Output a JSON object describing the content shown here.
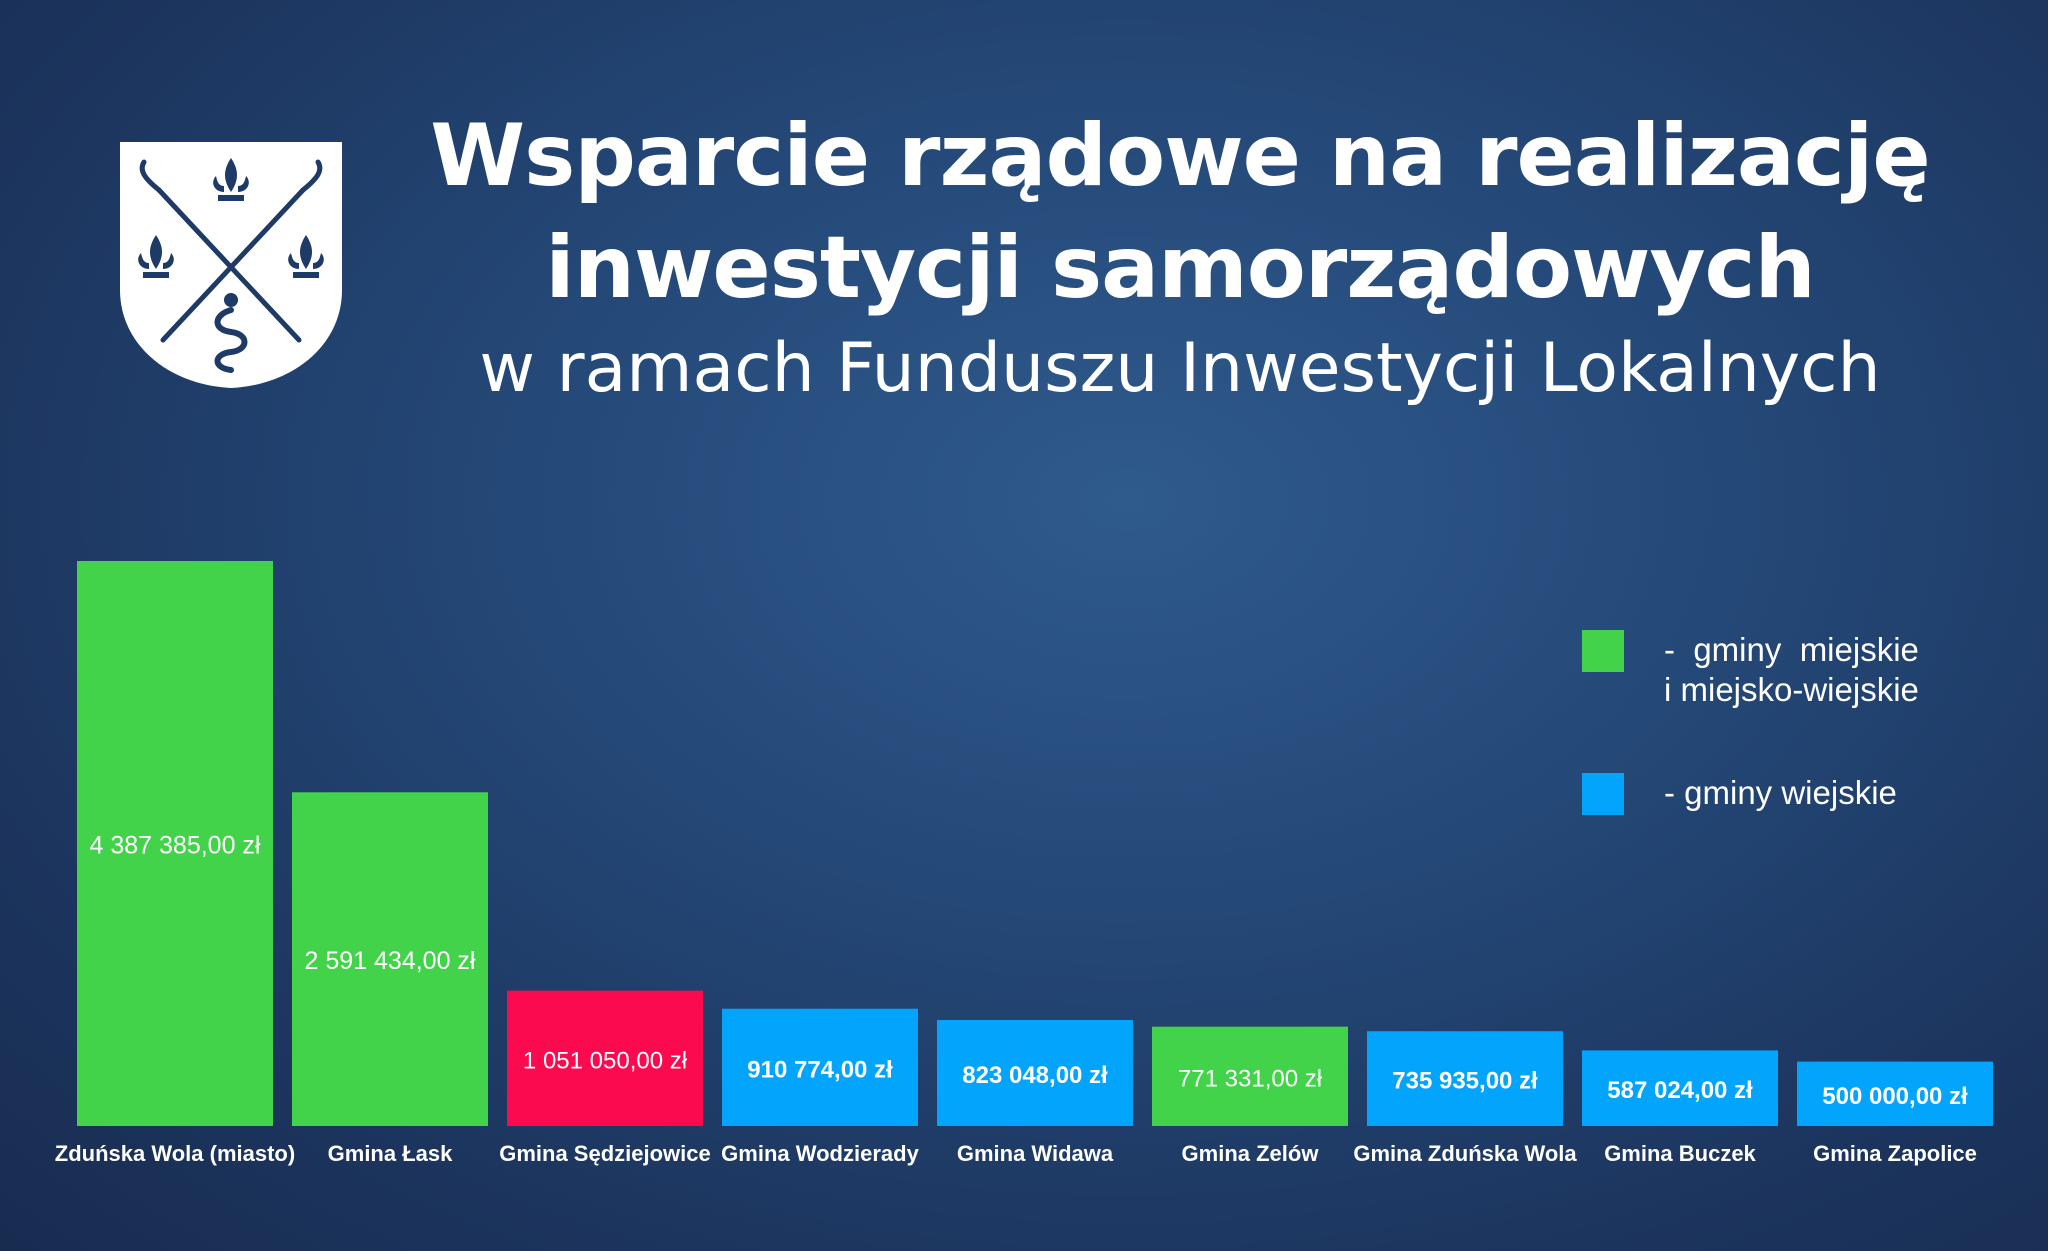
{
  "header": {
    "title_line1": "Wsparcie rządowe na realizację",
    "title_line2": "inwestycji samorządowych",
    "subtitle": "w ramach Funduszu Inwestycji Lokalnych"
  },
  "crest": {
    "icon": "coat-of-arms-icon"
  },
  "colors": {
    "urban": "#43d34a",
    "rural": "#03a4fb",
    "highlight": "#fb0a50",
    "text": "#ffffff"
  },
  "legend": [
    {
      "label": "-  gminy  miejskie",
      "label2": "i miejsko-wiejskie",
      "color": "#43d34a"
    },
    {
      "label": "- gminy wiejskie",
      "label2": "",
      "color": "#03a4fb"
    }
  ],
  "chart_data": {
    "type": "bar",
    "title": "",
    "xlabel": "",
    "ylabel": "",
    "ylim": [
      0,
      4387385
    ],
    "grid": false,
    "legend_position": "right",
    "categories": [
      "Zduńska Wola (miasto)",
      "Gmina Łask",
      "Gmina Sędziejowice",
      "Gmina Wodzierady",
      "Gmina Widawa",
      "Gmina Zelów",
      "Gmina Zduńska Wola",
      "Gmina Buczek",
      "Gmina Zapolice"
    ],
    "values": [
      4387385,
      2591434,
      1051050,
      910774,
      823048,
      771331,
      735935,
      587024,
      500000
    ],
    "value_labels": [
      "4 387 385,00 zł",
      "2 591 434,00 zł",
      "1 051 050,00 zł",
      "910 774,00 zł",
      "823 048,00 zł",
      "771 331,00 zł",
      "735 935,00 zł",
      "587 024,00 zł",
      "500 000,00 zł"
    ],
    "bar_colors": [
      "#43d34a",
      "#43d34a",
      "#fb0a50",
      "#03a4fb",
      "#03a4fb",
      "#43d34a",
      "#03a4fb",
      "#03a4fb",
      "#03a4fb"
    ]
  }
}
